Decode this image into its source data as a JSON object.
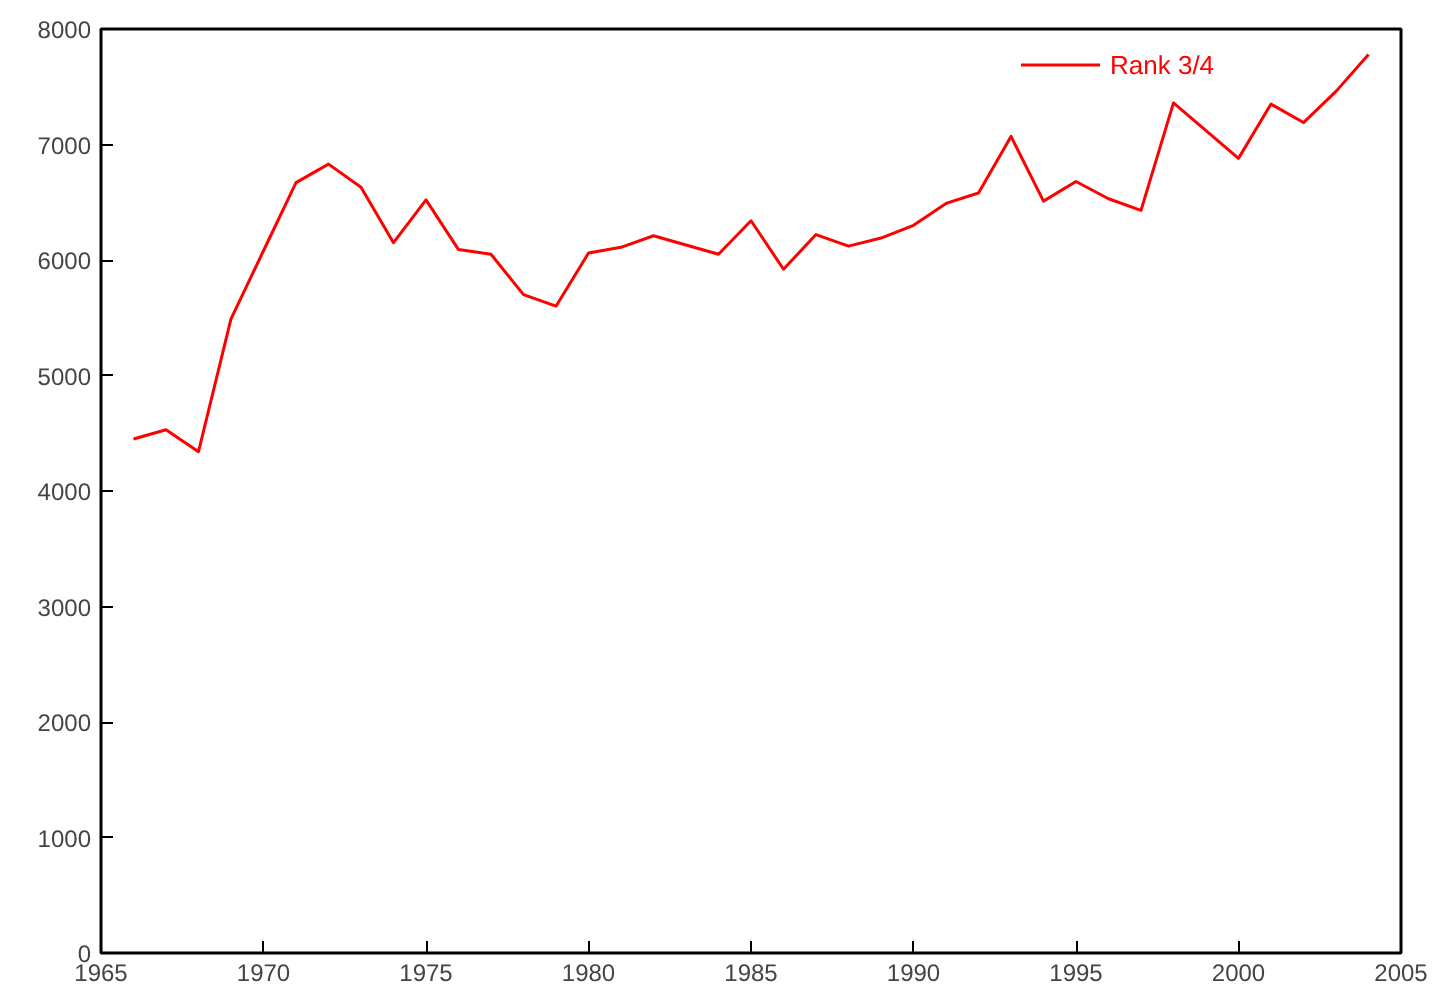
{
  "chart_data": {
    "type": "line",
    "x": [
      1966,
      1967,
      1968,
      1969,
      1970,
      1971,
      1972,
      1973,
      1974,
      1975,
      1976,
      1977,
      1978,
      1979,
      1980,
      1981,
      1982,
      1983,
      1984,
      1985,
      1986,
      1987,
      1988,
      1989,
      1990,
      1991,
      1992,
      1993,
      1994,
      1995,
      1996,
      1997,
      1998,
      1999,
      2000,
      2001,
      2002,
      2003,
      2004
    ],
    "series": [
      {
        "name": "Rank 3/4",
        "color": "#ff0000",
        "values": [
          4450,
          4530,
          4340,
          5490,
          6080,
          6670,
          6830,
          6630,
          6150,
          6520,
          6090,
          6050,
          5700,
          5600,
          6060,
          6110,
          6210,
          6130,
          6050,
          6340,
          5920,
          6220,
          6120,
          6190,
          6300,
          6490,
          6580,
          7070,
          6510,
          6680,
          6530,
          6430,
          7360,
          7120,
          6880,
          7350,
          7190,
          7460,
          7780
        ]
      }
    ],
    "xlim": [
      1965,
      2005
    ],
    "xticks": [
      1965,
      1970,
      1975,
      1980,
      1985,
      1990,
      1995,
      2000,
      2005
    ],
    "ylim": [
      0,
      8000
    ],
    "yticks": [
      0,
      1000,
      2000,
      3000,
      4000,
      5000,
      6000,
      7000,
      8000
    ],
    "grid": false,
    "legend": "top right",
    "marker": "none",
    "line_style": "solid"
  }
}
